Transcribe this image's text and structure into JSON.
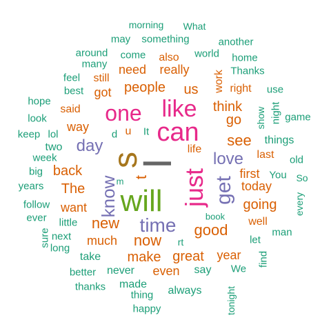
{
  "palette": {
    "teal": "#1b9e77",
    "orange": "#d95f02",
    "purple": "#7570b3",
    "pink": "#e7298a",
    "green": "#66a61e",
    "gold": "#a6761d",
    "gray": "#666666"
  },
  "words": [
    {
      "text": "I",
      "color": "gray",
      "vertical": true
    },
    {
      "text": "s",
      "color": "gold",
      "vertical": true
    },
    {
      "text": "will",
      "color": "green",
      "vertical": false
    },
    {
      "text": "can",
      "color": "pink",
      "vertical": false
    },
    {
      "text": "just",
      "color": "pink",
      "vertical": true
    },
    {
      "text": "like",
      "color": "pink",
      "vertical": false
    },
    {
      "text": "one",
      "color": "pink",
      "vertical": false
    },
    {
      "text": "get",
      "color": "purple",
      "vertical": true
    },
    {
      "text": "time",
      "color": "purple",
      "vertical": false
    },
    {
      "text": "know",
      "color": "purple",
      "vertical": true
    },
    {
      "text": "day",
      "color": "purple",
      "vertical": false
    },
    {
      "text": "love",
      "color": "purple",
      "vertical": false
    },
    {
      "text": "t",
      "color": "orange",
      "vertical": true
    },
    {
      "text": "good",
      "color": "orange",
      "vertical": false
    },
    {
      "text": "new",
      "color": "orange",
      "vertical": false
    },
    {
      "text": "now",
      "color": "orange",
      "vertical": false
    },
    {
      "text": "see",
      "color": "orange",
      "vertical": false
    },
    {
      "text": "going",
      "color": "orange",
      "vertical": false
    },
    {
      "text": "back",
      "color": "orange",
      "vertical": false
    },
    {
      "text": "people",
      "color": "orange",
      "vertical": false
    },
    {
      "text": "think",
      "color": "orange",
      "vertical": false
    },
    {
      "text": "go",
      "color": "orange",
      "vertical": false
    },
    {
      "text": "The",
      "color": "orange",
      "vertical": false
    },
    {
      "text": "make",
      "color": "orange",
      "vertical": false
    },
    {
      "text": "great",
      "color": "orange",
      "vertical": false
    },
    {
      "text": "us",
      "color": "orange",
      "vertical": false
    },
    {
      "text": "really",
      "color": "orange",
      "vertical": false
    },
    {
      "text": "much",
      "color": "orange",
      "vertical": false
    },
    {
      "text": "today",
      "color": "orange",
      "vertical": false
    },
    {
      "text": "way",
      "color": "orange",
      "vertical": false
    },
    {
      "text": "want",
      "color": "orange",
      "vertical": false
    },
    {
      "text": "year",
      "color": "orange",
      "vertical": false
    },
    {
      "text": "even",
      "color": "orange",
      "vertical": false
    },
    {
      "text": "need",
      "color": "orange",
      "vertical": false
    },
    {
      "text": "got",
      "color": "orange",
      "vertical": false
    },
    {
      "text": "first",
      "color": "orange",
      "vertical": false
    },
    {
      "text": "well",
      "color": "orange",
      "vertical": false
    },
    {
      "text": "last",
      "color": "orange",
      "vertical": false
    },
    {
      "text": "right",
      "color": "orange",
      "vertical": false
    },
    {
      "text": "work",
      "color": "orange",
      "vertical": true
    },
    {
      "text": "u",
      "color": "orange",
      "vertical": false
    },
    {
      "text": "said",
      "color": "orange",
      "vertical": false
    },
    {
      "text": "still",
      "color": "orange",
      "vertical": false
    },
    {
      "text": "also",
      "color": "orange",
      "vertical": false
    },
    {
      "text": "life",
      "color": "orange",
      "vertical": false
    },
    {
      "text": "take",
      "color": "teal",
      "vertical": false
    },
    {
      "text": "never",
      "color": "teal",
      "vertical": false
    },
    {
      "text": "say",
      "color": "teal",
      "vertical": false
    },
    {
      "text": "always",
      "color": "teal",
      "vertical": false
    },
    {
      "text": "made",
      "color": "teal",
      "vertical": false
    },
    {
      "text": "thing",
      "color": "teal",
      "vertical": false
    },
    {
      "text": "happy",
      "color": "teal",
      "vertical": false
    },
    {
      "text": "thanks",
      "color": "teal",
      "vertical": false
    },
    {
      "text": "better",
      "color": "teal",
      "vertical": false
    },
    {
      "text": "long",
      "color": "teal",
      "vertical": false
    },
    {
      "text": "next",
      "color": "teal",
      "vertical": false
    },
    {
      "text": "sure",
      "color": "teal",
      "vertical": true
    },
    {
      "text": "little",
      "color": "teal",
      "vertical": false
    },
    {
      "text": "ever",
      "color": "teal",
      "vertical": false
    },
    {
      "text": "follow",
      "color": "teal",
      "vertical": false
    },
    {
      "text": "years",
      "color": "teal",
      "vertical": false
    },
    {
      "text": "big",
      "color": "teal",
      "vertical": false
    },
    {
      "text": "week",
      "color": "teal",
      "vertical": false
    },
    {
      "text": "two",
      "color": "teal",
      "vertical": false
    },
    {
      "text": "keep",
      "color": "teal",
      "vertical": false
    },
    {
      "text": "lol",
      "color": "teal",
      "vertical": false
    },
    {
      "text": "look",
      "color": "teal",
      "vertical": false
    },
    {
      "text": "hope",
      "color": "teal",
      "vertical": false
    },
    {
      "text": "feel",
      "color": "teal",
      "vertical": false
    },
    {
      "text": "best",
      "color": "teal",
      "vertical": false
    },
    {
      "text": "many",
      "color": "teal",
      "vertical": false
    },
    {
      "text": "around",
      "color": "teal",
      "vertical": false
    },
    {
      "text": "come",
      "color": "teal",
      "vertical": false
    },
    {
      "text": "may",
      "color": "teal",
      "vertical": false
    },
    {
      "text": "something",
      "color": "teal",
      "vertical": false
    },
    {
      "text": "morning",
      "color": "teal",
      "vertical": false
    },
    {
      "text": "What",
      "color": "teal",
      "vertical": false
    },
    {
      "text": "world",
      "color": "teal",
      "vertical": false
    },
    {
      "text": "another",
      "color": "teal",
      "vertical": false
    },
    {
      "text": "home",
      "color": "teal",
      "vertical": false
    },
    {
      "text": "Thanks",
      "color": "teal",
      "vertical": false
    },
    {
      "text": "use",
      "color": "teal",
      "vertical": false
    },
    {
      "text": "show",
      "color": "teal",
      "vertical": true
    },
    {
      "text": "night",
      "color": "teal",
      "vertical": true
    },
    {
      "text": "game",
      "color": "teal",
      "vertical": false
    },
    {
      "text": "things",
      "color": "teal",
      "vertical": false
    },
    {
      "text": "old",
      "color": "teal",
      "vertical": false
    },
    {
      "text": "You",
      "color": "teal",
      "vertical": false
    },
    {
      "text": "So",
      "color": "teal",
      "vertical": false
    },
    {
      "text": "every",
      "color": "teal",
      "vertical": true
    },
    {
      "text": "man",
      "color": "teal",
      "vertical": false
    },
    {
      "text": "let",
      "color": "teal",
      "vertical": false
    },
    {
      "text": "find",
      "color": "teal",
      "vertical": true
    },
    {
      "text": "We",
      "color": "teal",
      "vertical": false
    },
    {
      "text": "tonight",
      "color": "teal",
      "vertical": true
    },
    {
      "text": "book",
      "color": "teal",
      "vertical": false
    },
    {
      "text": "rt",
      "color": "teal",
      "vertical": false
    },
    {
      "text": "m",
      "color": "teal",
      "vertical": false
    },
    {
      "text": "d",
      "color": "teal",
      "vertical": false
    },
    {
      "text": "It",
      "color": "teal",
      "vertical": false
    }
  ]
}
